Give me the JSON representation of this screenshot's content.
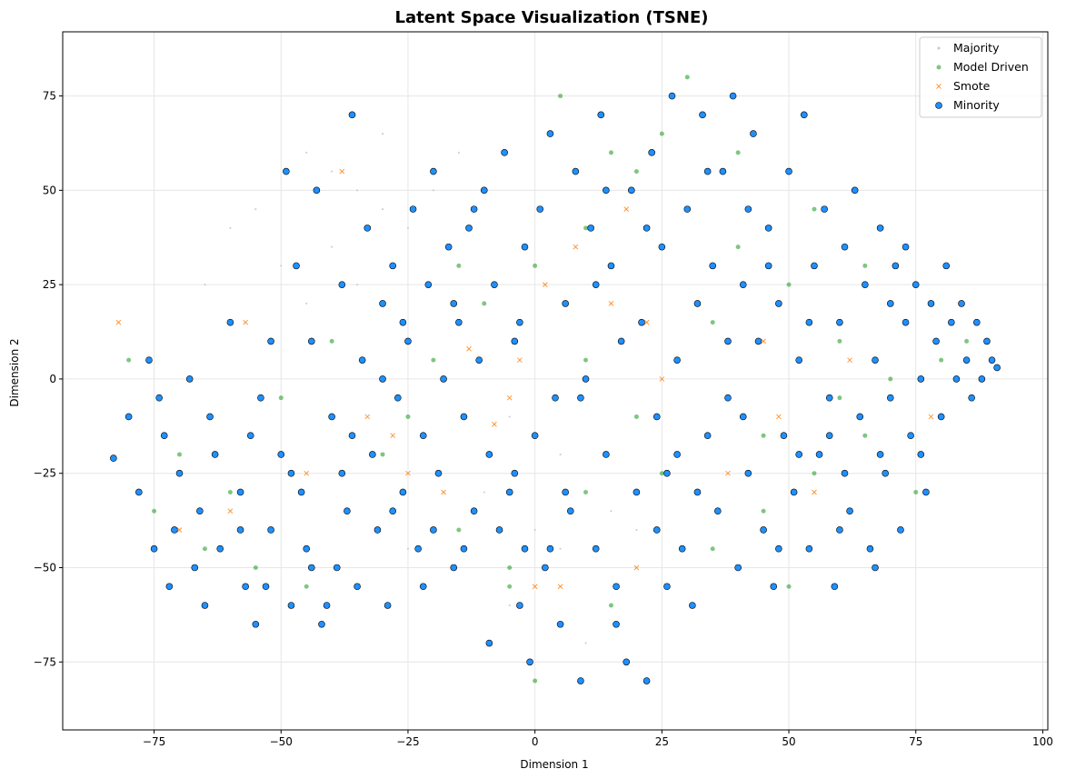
{
  "chart_data": {
    "type": "scatter",
    "title": "Latent Space Visualization (TSNE)",
    "xlabel": "Dimension 1",
    "ylabel": "Dimension 2",
    "xlim": [
      -93,
      101
    ],
    "ylim": [
      -93,
      92
    ],
    "xticks": [
      -75,
      -50,
      -25,
      0,
      25,
      50,
      75,
      100
    ],
    "yticks": [
      -75,
      -50,
      -25,
      0,
      25,
      50,
      75
    ],
    "grid": true,
    "legend_position": "top-right",
    "series": [
      {
        "name": "Majority",
        "color": "#c8c8c8",
        "marker": "dot",
        "points": [
          [
            -45,
            60
          ],
          [
            -40,
            55
          ],
          [
            -35,
            50
          ],
          [
            -30,
            45
          ],
          [
            -25,
            40
          ],
          [
            -20,
            50
          ],
          [
            -55,
            45
          ],
          [
            -60,
            40
          ],
          [
            -50,
            30
          ],
          [
            -45,
            20
          ],
          [
            -10,
            -30
          ],
          [
            0,
            -40
          ],
          [
            5,
            -45
          ],
          [
            -5,
            -60
          ],
          [
            10,
            -70
          ],
          [
            -30,
            65
          ],
          [
            -15,
            60
          ],
          [
            -65,
            25
          ],
          [
            -40,
            35
          ],
          [
            -35,
            25
          ],
          [
            -25,
            -45
          ],
          [
            15,
            -35
          ],
          [
            20,
            -40
          ],
          [
            -5,
            -10
          ],
          [
            5,
            -20
          ]
        ]
      },
      {
        "name": "Model Driven",
        "color": "#2ca02c",
        "marker": "circle-small",
        "points": [
          [
            -80,
            5
          ],
          [
            -70,
            -20
          ],
          [
            -60,
            -30
          ],
          [
            -55,
            -50
          ],
          [
            -45,
            -55
          ],
          [
            -35,
            -55
          ],
          [
            -50,
            -5
          ],
          [
            -20,
            5
          ],
          [
            -10,
            20
          ],
          [
            0,
            30
          ],
          [
            10,
            40
          ],
          [
            20,
            55
          ],
          [
            25,
            65
          ],
          [
            30,
            45
          ],
          [
            40,
            35
          ],
          [
            50,
            25
          ],
          [
            60,
            10
          ],
          [
            70,
            0
          ],
          [
            80,
            5
          ],
          [
            85,
            10
          ],
          [
            65,
            -15
          ],
          [
            55,
            -25
          ],
          [
            45,
            -35
          ],
          [
            35,
            -45
          ],
          [
            50,
            -55
          ],
          [
            60,
            -5
          ],
          [
            20,
            -10
          ],
          [
            10,
            -30
          ],
          [
            -5,
            -50
          ],
          [
            0,
            -80
          ],
          [
            15,
            -60
          ],
          [
            -15,
            -40
          ],
          [
            -25,
            -10
          ],
          [
            -40,
            10
          ],
          [
            15,
            60
          ],
          [
            5,
            75
          ],
          [
            35,
            15
          ],
          [
            45,
            -15
          ],
          [
            75,
            -30
          ],
          [
            30,
            80
          ],
          [
            -5,
            -55
          ],
          [
            -65,
            -45
          ],
          [
            -75,
            -35
          ],
          [
            40,
            60
          ],
          [
            55,
            45
          ],
          [
            -30,
            -20
          ],
          [
            -15,
            30
          ],
          [
            25,
            -25
          ],
          [
            10,
            5
          ],
          [
            65,
            30
          ]
        ]
      },
      {
        "name": "Smote",
        "color": "#ff7f0e",
        "marker": "x",
        "points": [
          [
            -82,
            15
          ],
          [
            -57,
            15
          ],
          [
            -38,
            55
          ],
          [
            -33,
            -10
          ],
          [
            -28,
            -15
          ],
          [
            -13,
            8
          ],
          [
            -8,
            -12
          ],
          [
            -3,
            5
          ],
          [
            2,
            25
          ],
          [
            8,
            35
          ],
          [
            18,
            45
          ],
          [
            -18,
            -30
          ],
          [
            -25,
            -25
          ],
          [
            5,
            -55
          ],
          [
            0,
            -55
          ],
          [
            -5,
            -5
          ],
          [
            15,
            20
          ],
          [
            22,
            15
          ],
          [
            35,
            30
          ],
          [
            45,
            10
          ],
          [
            62,
            5
          ],
          [
            78,
            -10
          ],
          [
            55,
            -30
          ],
          [
            48,
            -10
          ],
          [
            -45,
            -25
          ],
          [
            -60,
            -35
          ],
          [
            -70,
            -40
          ],
          [
            20,
            -50
          ],
          [
            25,
            0
          ],
          [
            38,
            -25
          ]
        ]
      },
      {
        "name": "Minority",
        "color": "#1e90ff",
        "marker": "circle",
        "points": [
          [
            -83,
            -21
          ],
          [
            -80,
            -10
          ],
          [
            -78,
            -30
          ],
          [
            -76,
            5
          ],
          [
            -75,
            -45
          ],
          [
            -73,
            -15
          ],
          [
            -72,
            -55
          ],
          [
            -70,
            -25
          ],
          [
            -68,
            0
          ],
          [
            -66,
            -35
          ],
          [
            -65,
            -60
          ],
          [
            -63,
            -20
          ],
          [
            -62,
            -45
          ],
          [
            -60,
            15
          ],
          [
            -58,
            -30
          ],
          [
            -57,
            -55
          ],
          [
            -55,
            -65
          ],
          [
            -54,
            -5
          ],
          [
            -52,
            -40
          ],
          [
            -50,
            -20
          ],
          [
            -49,
            55
          ],
          [
            -48,
            -60
          ],
          [
            -46,
            -30
          ],
          [
            -45,
            -45
          ],
          [
            -44,
            10
          ],
          [
            -43,
            50
          ],
          [
            -42,
            -65
          ],
          [
            -40,
            -10
          ],
          [
            -39,
            -50
          ],
          [
            -38,
            25
          ],
          [
            -37,
            -35
          ],
          [
            -36,
            70
          ],
          [
            -35,
            -55
          ],
          [
            -34,
            5
          ],
          [
            -33,
            40
          ],
          [
            -32,
            -20
          ],
          [
            -31,
            -40
          ],
          [
            -30,
            20
          ],
          [
            -29,
            -60
          ],
          [
            -28,
            30
          ],
          [
            -27,
            -5
          ],
          [
            -26,
            -30
          ],
          [
            -25,
            10
          ],
          [
            -24,
            45
          ],
          [
            -23,
            -45
          ],
          [
            -22,
            -15
          ],
          [
            -21,
            25
          ],
          [
            -20,
            55
          ],
          [
            -19,
            -25
          ],
          [
            -18,
            0
          ],
          [
            -17,
            35
          ],
          [
            -16,
            -50
          ],
          [
            -15,
            15
          ],
          [
            -14,
            -10
          ],
          [
            -13,
            40
          ],
          [
            -12,
            -35
          ],
          [
            -11,
            5
          ],
          [
            -10,
            50
          ],
          [
            -9,
            -20
          ],
          [
            -8,
            25
          ],
          [
            -7,
            -40
          ],
          [
            -6,
            60
          ],
          [
            -5,
            -30
          ],
          [
            -4,
            10
          ],
          [
            -3,
            -60
          ],
          [
            -2,
            35
          ],
          [
            -1,
            -75
          ],
          [
            0,
            -15
          ],
          [
            1,
            45
          ],
          [
            2,
            -50
          ],
          [
            3,
            65
          ],
          [
            4,
            -5
          ],
          [
            5,
            -65
          ],
          [
            6,
            20
          ],
          [
            7,
            -35
          ],
          [
            8,
            55
          ],
          [
            9,
            -80
          ],
          [
            10,
            0
          ],
          [
            11,
            40
          ],
          [
            12,
            -45
          ],
          [
            13,
            70
          ],
          [
            14,
            -20
          ],
          [
            15,
            30
          ],
          [
            16,
            -55
          ],
          [
            17,
            10
          ],
          [
            18,
            -75
          ],
          [
            19,
            50
          ],
          [
            20,
            -30
          ],
          [
            21,
            15
          ],
          [
            22,
            -80
          ],
          [
            23,
            60
          ],
          [
            24,
            -10
          ],
          [
            25,
            35
          ],
          [
            26,
            -25
          ],
          [
            27,
            75
          ],
          [
            28,
            5
          ],
          [
            29,
            -45
          ],
          [
            30,
            45
          ],
          [
            31,
            -60
          ],
          [
            32,
            20
          ],
          [
            33,
            70
          ],
          [
            34,
            -15
          ],
          [
            35,
            30
          ],
          [
            36,
            -35
          ],
          [
            37,
            55
          ],
          [
            38,
            -5
          ],
          [
            39,
            75
          ],
          [
            40,
            -50
          ],
          [
            41,
            25
          ],
          [
            42,
            -25
          ],
          [
            43,
            65
          ],
          [
            44,
            10
          ],
          [
            45,
            -40
          ],
          [
            46,
            40
          ],
          [
            47,
            -55
          ],
          [
            48,
            20
          ],
          [
            49,
            -15
          ],
          [
            50,
            55
          ],
          [
            51,
            -30
          ],
          [
            52,
            5
          ],
          [
            53,
            70
          ],
          [
            54,
            -45
          ],
          [
            55,
            30
          ],
          [
            56,
            -20
          ],
          [
            57,
            45
          ],
          [
            58,
            -5
          ],
          [
            59,
            -55
          ],
          [
            60,
            15
          ],
          [
            61,
            35
          ],
          [
            62,
            -35
          ],
          [
            63,
            50
          ],
          [
            64,
            -10
          ],
          [
            65,
            25
          ],
          [
            66,
            -45
          ],
          [
            67,
            5
          ],
          [
            68,
            40
          ],
          [
            69,
            -25
          ],
          [
            70,
            -5
          ],
          [
            71,
            30
          ],
          [
            72,
            -40
          ],
          [
            73,
            15
          ],
          [
            74,
            -15
          ],
          [
            75,
            25
          ],
          [
            76,
            0
          ],
          [
            77,
            -30
          ],
          [
            78,
            20
          ],
          [
            79,
            10
          ],
          [
            80,
            -10
          ],
          [
            81,
            30
          ],
          [
            82,
            15
          ],
          [
            83,
            0
          ],
          [
            84,
            20
          ],
          [
            85,
            5
          ],
          [
            86,
            -5
          ],
          [
            87,
            15
          ],
          [
            88,
            0
          ],
          [
            89,
            10
          ],
          [
            90,
            5
          ],
          [
            91,
            3
          ],
          [
            -71,
            -40
          ],
          [
            -64,
            -10
          ],
          [
            -53,
            -55
          ],
          [
            -47,
            30
          ],
          [
            -41,
            -60
          ],
          [
            -28,
            -35
          ],
          [
            -22,
            -55
          ],
          [
            -16,
            20
          ],
          [
            -9,
            -70
          ],
          [
            -3,
            15
          ],
          [
            3,
            -45
          ],
          [
            9,
            -5
          ],
          [
            16,
            -65
          ],
          [
            22,
            40
          ],
          [
            28,
            -20
          ],
          [
            34,
            55
          ],
          [
            41,
            -10
          ],
          [
            48,
            -45
          ],
          [
            54,
            15
          ],
          [
            61,
            -25
          ],
          [
            67,
            -50
          ],
          [
            73,
            35
          ],
          [
            -58,
            -40
          ],
          [
            -52,
            10
          ],
          [
            -48,
            -25
          ],
          [
            -36,
            -15
          ],
          [
            -30,
            0
          ],
          [
            -20,
            -40
          ],
          [
            -12,
            45
          ],
          [
            -4,
            -25
          ],
          [
            6,
            -30
          ],
          [
            14,
            50
          ],
          [
            24,
            -40
          ],
          [
            32,
            -30
          ],
          [
            42,
            45
          ],
          [
            52,
            -20
          ],
          [
            60,
            -40
          ],
          [
            70,
            20
          ],
          [
            -74,
            -5
          ],
          [
            -67,
            -50
          ],
          [
            -56,
            -15
          ],
          [
            -44,
            -50
          ],
          [
            -38,
            -25
          ],
          [
            -26,
            15
          ],
          [
            -14,
            -45
          ],
          [
            -2,
            -45
          ],
          [
            12,
            25
          ],
          [
            26,
            -55
          ],
          [
            38,
            10
          ],
          [
            46,
            30
          ],
          [
            58,
            -15
          ],
          [
            68,
            -20
          ],
          [
            76,
            -20
          ]
        ]
      }
    ]
  }
}
